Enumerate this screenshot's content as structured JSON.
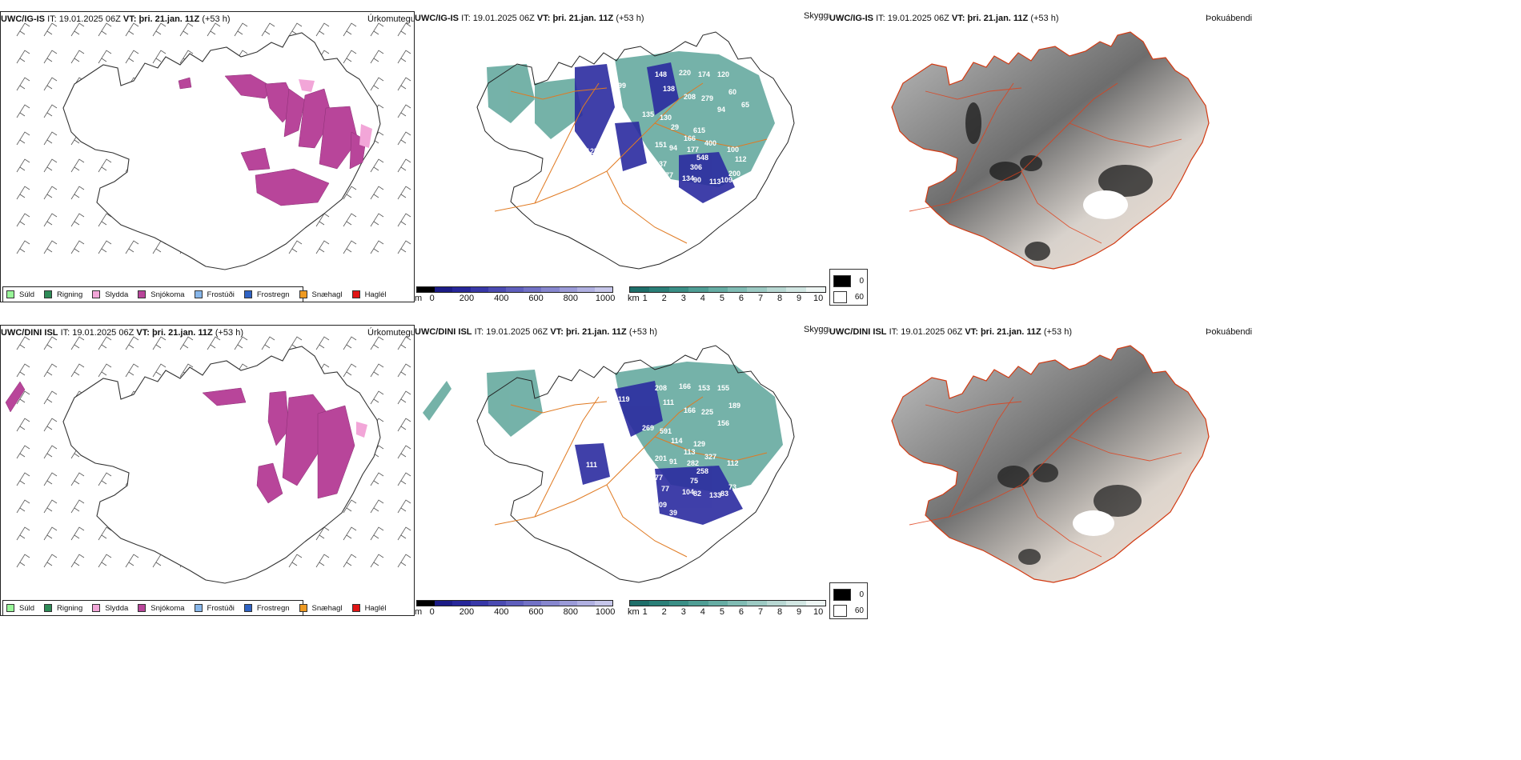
{
  "rows": [
    {
      "model": "UWC/IG-IS",
      "it_label": "IT:",
      "it_value": "19.01.2025 06Z",
      "vt_label": "VT:",
      "vt_value": "þri. 21.jan. 11Z",
      "lead": "(+53 h)"
    },
    {
      "model": "UWC/DINI ISL",
      "it_label": "IT:",
      "it_value": "19.01.2025 06Z",
      "vt_label": "VT:",
      "vt_value": "þri. 21.jan. 11Z",
      "lead": "(+53 h)"
    }
  ],
  "panel_titles": {
    "precip_type": "Úrkomutegund",
    "ceiling": "Skyggni",
    "fog": "Þokuábendi"
  },
  "precip_legend": [
    {
      "label": "Súld",
      "color": "#98f598"
    },
    {
      "label": "Rigning",
      "color": "#2e8b57"
    },
    {
      "label": "Slydda",
      "color": "#f2a6d8"
    },
    {
      "label": "Snjókoma",
      "color": "#b8459a"
    },
    {
      "label": "Frostúði",
      "color": "#87b6ea"
    },
    {
      "label": "Frostregn",
      "color": "#2f63c4"
    },
    {
      "label": "Snæhagl",
      "color": "#ee9a22"
    },
    {
      "label": "Haglél",
      "color": "#e01515"
    }
  ],
  "cloudbase_bar": {
    "unit": "m",
    "ticks": [
      "0",
      "200",
      "400",
      "600",
      "800",
      "1000"
    ],
    "colors": [
      "#000000",
      "#1c1c86",
      "#27279a",
      "#3838a8",
      "#4b4bb2",
      "#5f5fbd",
      "#7272c6",
      "#8787cf",
      "#9b9bd8",
      "#b0b0e1",
      "#c6c6ea"
    ]
  },
  "visibility_bar": {
    "unit": "km",
    "ticks": [
      "1",
      "2",
      "3",
      "4",
      "5",
      "6",
      "7",
      "8",
      "9",
      "10"
    ],
    "colors": [
      "#1e6f6a",
      "#2a7f78",
      "#3a8f86",
      "#4f9e95",
      "#66ada4",
      "#80bcb4",
      "#9ccac3",
      "#b8d8d3",
      "#d2e7e3",
      "#eef6f4"
    ]
  },
  "fog_key": [
    {
      "label": "0",
      "color": "#000000"
    },
    {
      "label": "60",
      "color": "#ffffff"
    }
  ],
  "labels_top": [
    "148",
    "220",
    "174",
    "120",
    "138",
    "99",
    "208",
    "279",
    "94",
    "60",
    "135",
    "130",
    "29",
    "615",
    "166",
    "400",
    "151",
    "94",
    "177",
    "548",
    "306",
    "100",
    "125",
    "137",
    "177",
    "134",
    "90",
    "113",
    "109",
    "226",
    "243",
    "200",
    "112",
    "65"
  ],
  "labels_bottom": [
    "208",
    "166",
    "153",
    "155",
    "111",
    "119",
    "166",
    "225",
    "156",
    "189",
    "269",
    "591",
    "114",
    "129",
    "113",
    "327",
    "201",
    "91",
    "282",
    "258",
    "75",
    "112",
    "111",
    "77",
    "77",
    "104",
    "82",
    "133",
    "83",
    "109",
    "39",
    "73"
  ]
}
